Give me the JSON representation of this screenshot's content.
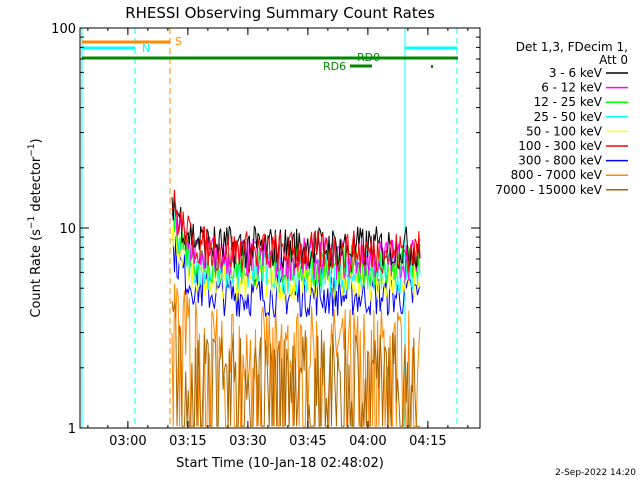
{
  "chart_data": {
    "type": "line",
    "title": "RHESSI Observing Summary Count Rates",
    "xlabel": "Start Time (10-Jan-18 02:48:02)",
    "ylabel": "Count Rate (s⁻¹ detector⁻¹)",
    "yscale": "log",
    "ylim": [
      1,
      100
    ],
    "xlim_minutes": [
      0,
      100
    ],
    "x_tick_labels": [
      "03:00",
      "03:15",
      "03:30",
      "03:45",
      "04:00",
      "04:15"
    ],
    "y_tick_labels": [
      "1",
      "10",
      "100"
    ],
    "legend_header": [
      "Det 1,3, FDecim 1,",
      "Att 0"
    ],
    "legend_position": "right",
    "series": [
      {
        "name": "3 - 6 keV",
        "color": "#000000",
        "level": 8.0
      },
      {
        "name": "6 - 12 keV",
        "color": "#ff00ff",
        "level": 7.0
      },
      {
        "name": "12 - 25 keV",
        "color": "#00ff00",
        "level": 6.5
      },
      {
        "name": "25 - 50 keV",
        "color": "#00ffff",
        "level": 6.0
      },
      {
        "name": "50 - 100 keV",
        "color": "#ffff00",
        "level": 5.5
      },
      {
        "name": "100 - 300 keV",
        "color": "#ff0000",
        "level": 7.6
      },
      {
        "name": "300 - 800 keV",
        "color": "#0000ff",
        "level": 4.6
      },
      {
        "name": "800 - 7000 keV",
        "color": "#ff8800",
        "level": 2.6
      },
      {
        "name": "7000 - 15000 keV",
        "color": "#aa6600",
        "level": 2.0
      }
    ],
    "markers": [
      {
        "label": "S",
        "color": "#ff8800"
      },
      {
        "label": "N",
        "color": "#00ffff"
      },
      {
        "label": "RD0",
        "color": "#008800"
      },
      {
        "label": "RD6",
        "color": "#008800"
      }
    ]
  },
  "footer": {
    "timestamp": "2-Sep-2022 14:20"
  }
}
